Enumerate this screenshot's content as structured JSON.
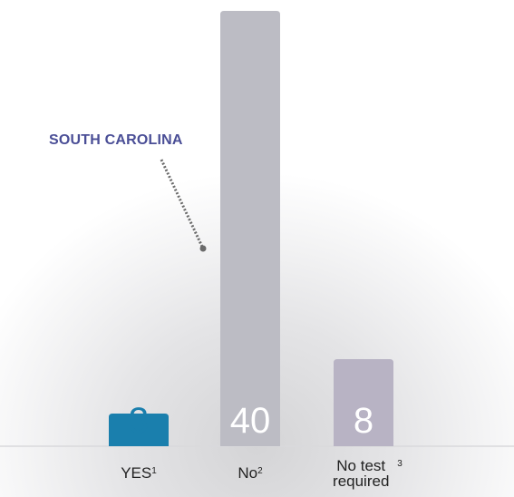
{
  "chart_data": {
    "type": "bar",
    "categories": [
      {
        "label": "YES",
        "footnote": "1"
      },
      {
        "label": "No",
        "footnote": "2"
      },
      {
        "label": "No test required",
        "footnote": "3"
      }
    ],
    "values": [
      3,
      40,
      8
    ],
    "data_labels": [
      "3",
      "40",
      "8"
    ],
    "bar_colors": [
      "#1a7fad",
      "#bcbcc4",
      "#b8b3c4"
    ],
    "data_label_colors": [
      "#1a7fad",
      "#ffffff",
      "#ffffff"
    ],
    "annotation": {
      "text": "SOUTH CAROLINA",
      "points_to": "No",
      "color": "#4a4e96"
    },
    "ylim": [
      0,
      40
    ],
    "grid": false,
    "legend": "none"
  }
}
